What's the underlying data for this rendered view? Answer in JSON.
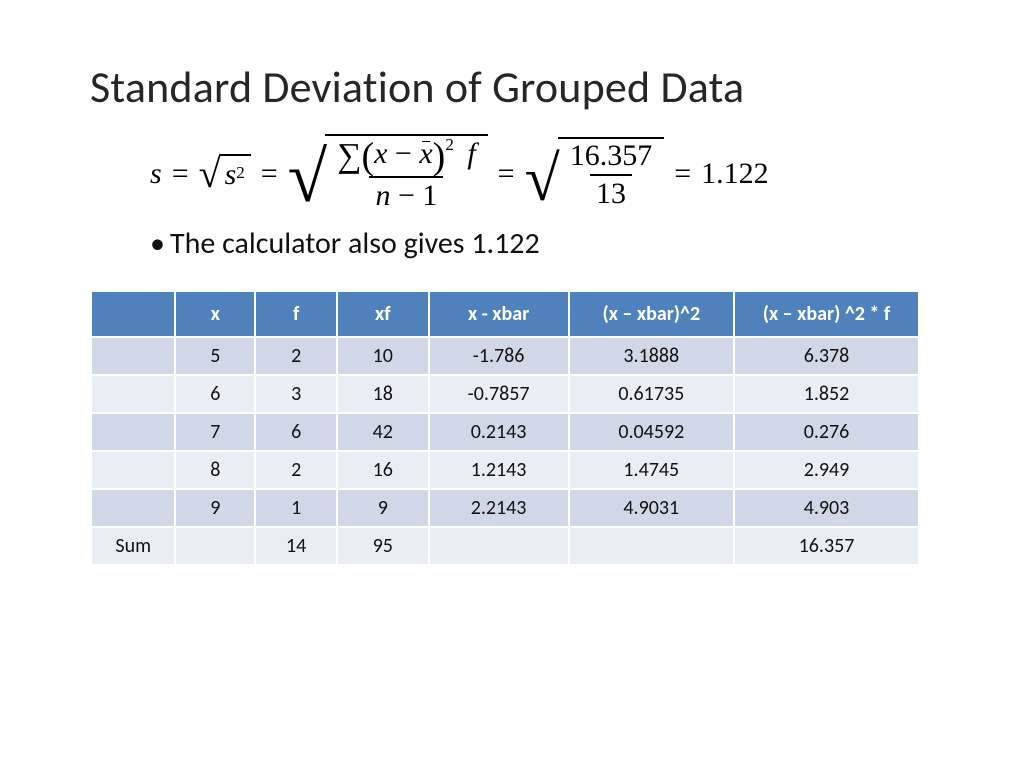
{
  "title": "Standard Deviation of Grouped Data",
  "formula": {
    "lhs": "s",
    "sqrt1_radicand_var": "s",
    "sqrt1_radicand_exp": "2",
    "frac_sum_var1": "x",
    "frac_sum_var2": "x",
    "frac_sum_exp": "2",
    "frac_sum_tail": "f",
    "frac_den1": "n",
    "frac_den2": "1",
    "num_top": "16.357",
    "num_bot": "13",
    "result": "1.122"
  },
  "bullet": "The calculator also gives 1.122",
  "table": {
    "header_bg": "#4f81bd",
    "header_fg": "#ffffff",
    "row_even_bg": "#e9edf4",
    "row_odd_bg": "#d0d8e8",
    "columns": [
      "",
      "x",
      "f",
      "xf",
      "x - xbar",
      "(x – xbar)^2",
      "(x – xbar) ^2 * f"
    ],
    "rows": [
      [
        "",
        "5",
        "2",
        "10",
        "-1.786",
        "3.1888",
        "6.378"
      ],
      [
        "",
        "6",
        "3",
        "18",
        "-0.7857",
        "0.61735",
        "1.852"
      ],
      [
        "",
        "7",
        "6",
        "42",
        "0.2143",
        "0.04592",
        "0.276"
      ],
      [
        "",
        "8",
        "2",
        "16",
        "1.2143",
        "1.4745",
        "2.949"
      ],
      [
        "",
        "9",
        "1",
        "9",
        "2.2143",
        "4.9031",
        "4.903"
      ],
      [
        "Sum",
        "",
        "14",
        "95",
        "",
        "",
        "16.357"
      ]
    ]
  }
}
